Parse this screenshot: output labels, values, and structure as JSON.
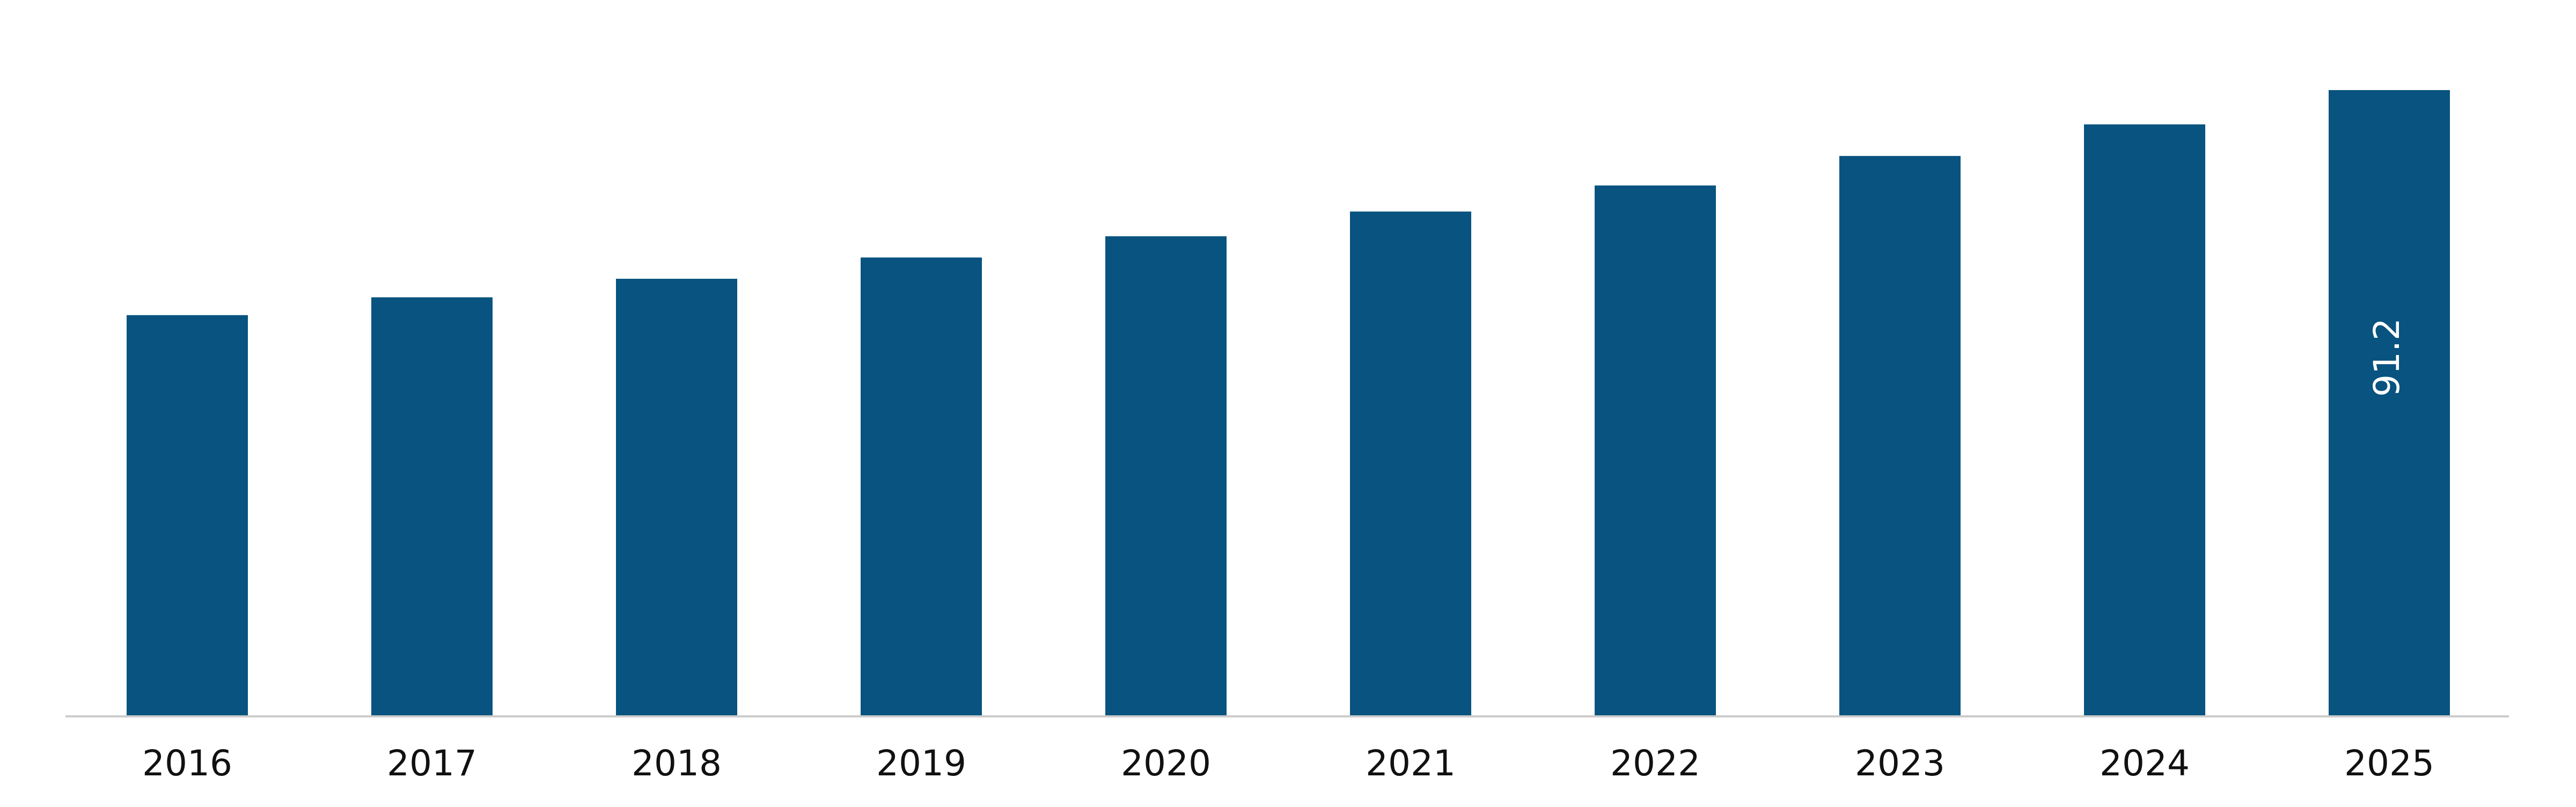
{
  "chart_data": {
    "type": "bar",
    "categories": [
      "2016",
      "2017",
      "2018",
      "2019",
      "2020",
      "2021",
      "2022",
      "2023",
      "2024",
      "2025"
    ],
    "values": [
      58.4,
      61.0,
      63.7,
      66.8,
      69.9,
      73.5,
      77.3,
      81.6,
      86.2,
      91.2
    ],
    "value_labels": [
      null,
      null,
      null,
      null,
      null,
      null,
      null,
      null,
      null,
      "91.2"
    ],
    "color": "#08537f"
  }
}
